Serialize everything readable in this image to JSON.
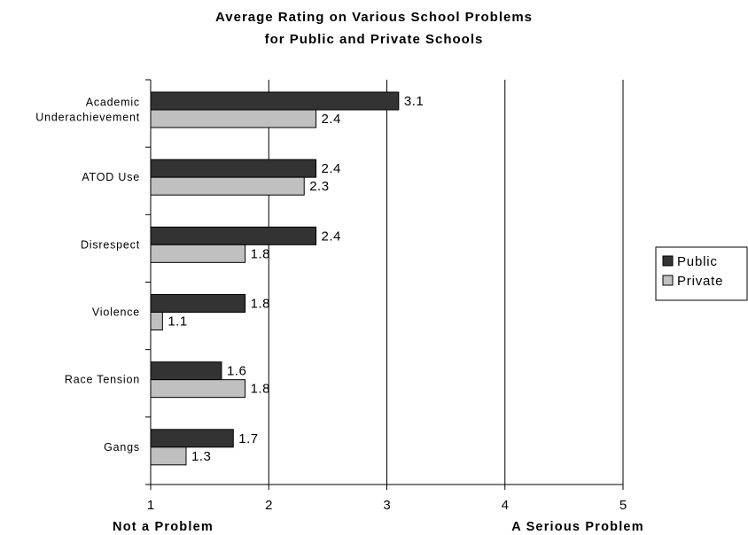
{
  "chart_data": {
    "type": "bar",
    "orientation": "horizontal",
    "title": "Average Rating on Various School Problems",
    "subtitle": "for Public and Private Schools",
    "categories": [
      [
        "Academic",
        "Underachievement"
      ],
      [
        "ATOD Use"
      ],
      [
        "Disrespect"
      ],
      [
        "Violence"
      ],
      [
        "Race Tension"
      ],
      [
        "Gangs"
      ]
    ],
    "series": [
      {
        "name": "Public",
        "color": "#333333",
        "values": [
          3.1,
          2.4,
          2.4,
          1.8,
          1.6,
          1.7
        ]
      },
      {
        "name": "Private",
        "color": "#c0c0c0",
        "values": [
          2.4,
          2.3,
          1.8,
          1.1,
          1.8,
          1.3
        ]
      }
    ],
    "xlim": [
      1,
      5
    ],
    "xticks": [
      "1",
      "2",
      "3",
      "4",
      "5"
    ],
    "grid": {
      "vertical": true,
      "horizontal": false
    },
    "legend": {
      "position": "right"
    },
    "anchor_labels": {
      "low": "Not a Problem",
      "high": "A Serious Problem"
    }
  }
}
